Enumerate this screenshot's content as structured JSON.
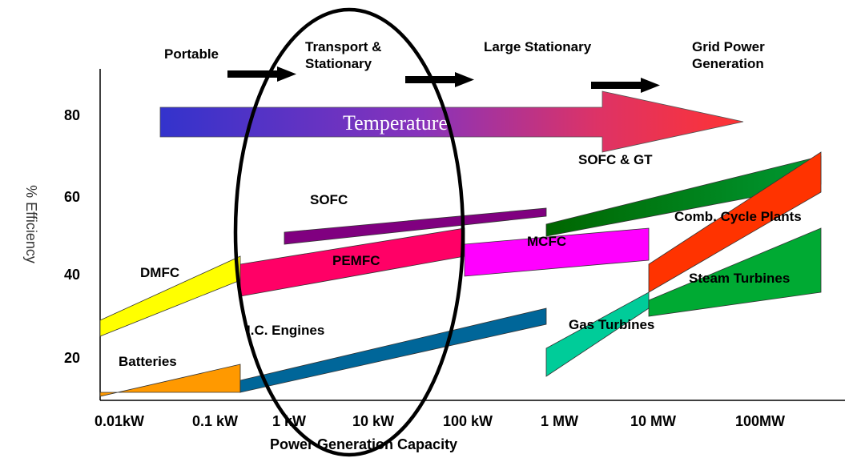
{
  "chart_data": {
    "type": "area",
    "xlabel": "Power Generation Capacity",
    "ylabel": "% Efficiency",
    "x_scale": "log",
    "x_ticks": [
      "0.01kW",
      "0.1 kW",
      "1 kW",
      "10 kW",
      "100 kW",
      "1 MW",
      "10 MW",
      "100MW"
    ],
    "y_ticks": [
      20,
      40,
      60,
      80
    ],
    "ylim": [
      10,
      92
    ],
    "segments": [
      "Portable",
      "Transport & Stationary",
      "Large Stationary",
      "Grid Power Generation"
    ],
    "banner": "Temperature",
    "series": [
      {
        "name": "Batteries",
        "color": "#FF9900",
        "polygon": [
          [
            "0.01kW",
            11
          ],
          [
            "0.1 kW",
            19
          ],
          [
            "0.1 kW",
            12
          ],
          [
            "0.01kW",
            12
          ]
        ]
      },
      {
        "name": "I.C. Engines",
        "color": "#006699",
        "polygon": [
          [
            "0.1 kW",
            15
          ],
          [
            "1 MW",
            33
          ],
          [
            "1 MW",
            29
          ],
          [
            "0.1 kW",
            12
          ]
        ]
      },
      {
        "name": "DMFC",
        "color": "#FFFF00",
        "polygon": [
          [
            "0.01kW",
            30
          ],
          [
            "0.1 kW",
            46
          ],
          [
            "0.1 kW",
            40
          ],
          [
            "0.01kW",
            26
          ]
        ]
      },
      {
        "name": "PEMFC",
        "color": "#FF0066",
        "polygon": [
          [
            "0.1 kW",
            44
          ],
          [
            "100 kW",
            53
          ],
          [
            "100 kW",
            46
          ],
          [
            "0.1 kW",
            36
          ]
        ]
      },
      {
        "name": "SOFC",
        "color": "#800080",
        "polygon": [
          [
            "1 kW",
            52
          ],
          [
            "1 MW",
            58
          ],
          [
            "1 MW",
            56
          ],
          [
            "1 kW",
            49
          ]
        ]
      },
      {
        "name": "MCFC",
        "color": "#FF00FF",
        "polygon": [
          [
            "100 kW",
            49
          ],
          [
            "10 MW",
            53
          ],
          [
            "10 MW",
            45
          ],
          [
            "100 kW",
            41
          ]
        ]
      },
      {
        "name": "SOFC & GT",
        "color": "#007A1F",
        "polygon": [
          [
            "1 MW",
            54
          ],
          [
            "100MW",
            71
          ],
          [
            "100MW",
            64
          ],
          [
            "1 MW",
            51
          ]
        ]
      },
      {
        "name": "Comb. Cycle Plants",
        "color": "#FF3300",
        "polygon": [
          [
            "10 MW",
            44
          ],
          [
            "100MW",
            72
          ],
          [
            "100MW",
            62
          ],
          [
            "10 MW",
            37
          ]
        ]
      },
      {
        "name": "Gas Turbines",
        "color": "#00CC99",
        "polygon": [
          [
            "1 MW",
            23
          ],
          [
            "10 MW",
            37
          ],
          [
            "10 MW",
            33
          ],
          [
            "1 MW",
            16
          ]
        ]
      },
      {
        "name": "Steam Turbines",
        "color": "#00AA33",
        "polygon": [
          [
            "10 MW",
            35
          ],
          [
            "100MW",
            53
          ],
          [
            "100MW",
            37
          ],
          [
            "10 MW",
            31
          ]
        ]
      }
    ]
  }
}
